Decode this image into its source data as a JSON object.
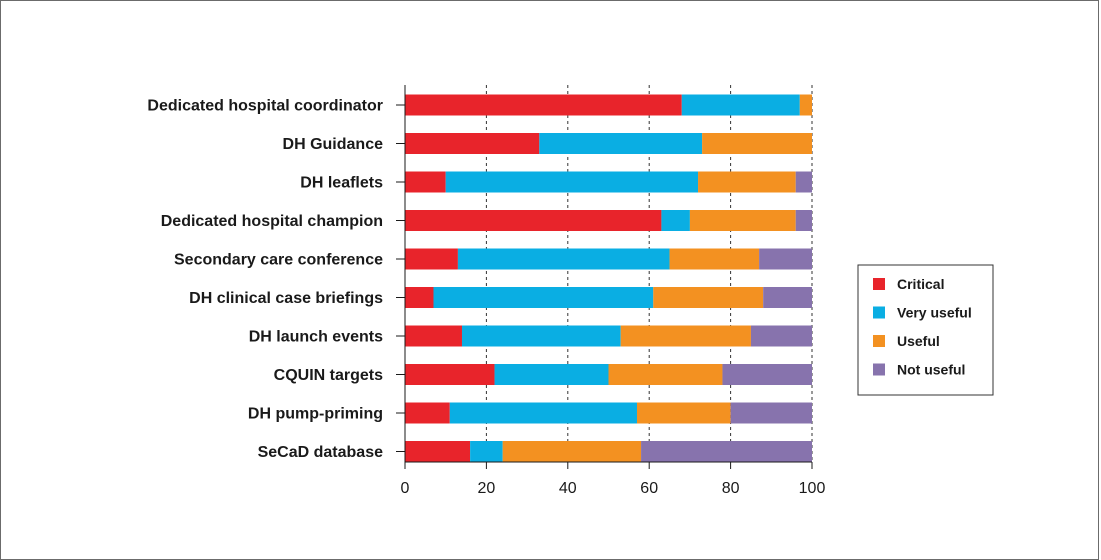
{
  "chart_data": {
    "type": "bar",
    "orientation": "horizontal",
    "stacked": true,
    "categories": [
      "Dedicated hospital coordinator",
      "DH Guidance",
      "DH leaflets",
      "Dedicated hospital champion",
      "Secondary care conference",
      "DH clinical case briefings",
      "DH launch events",
      "CQUIN targets",
      "DH pump-priming",
      "SeCaD database"
    ],
    "series": [
      {
        "name": "Critical",
        "color": "#e8242b",
        "values": [
          68,
          33,
          10,
          63,
          13,
          7,
          14,
          22,
          11,
          16
        ]
      },
      {
        "name": "Very useful",
        "color": "#0aaee3",
        "values": [
          29,
          40,
          62,
          7,
          52,
          54,
          39,
          28,
          46,
          8
        ]
      },
      {
        "name": "Useful",
        "color": "#f39121",
        "values": [
          3,
          27,
          24,
          26,
          22,
          27,
          32,
          28,
          23,
          34
        ]
      },
      {
        "name": "Not useful",
        "color": "#8773ad",
        "values": [
          0,
          0,
          4,
          4,
          13,
          12,
          15,
          22,
          20,
          42
        ]
      }
    ],
    "xlim": [
      0,
      100
    ],
    "xticks": [
      0,
      20,
      40,
      60,
      80,
      100
    ],
    "grid": "vertical dashed",
    "legend_position": "right",
    "title": "",
    "xlabel": "",
    "ylabel": ""
  }
}
